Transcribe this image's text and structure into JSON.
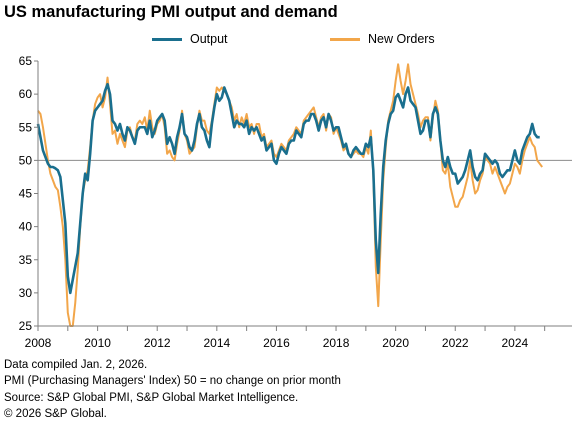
{
  "header": {
    "title": "US manufacturing PMI output and demand"
  },
  "colors": {
    "output": "#1a6f8e",
    "new_orders": "#f2a64a",
    "axis": "#7f7f7f",
    "reference_line": "#8c8c8c"
  },
  "footer": {
    "notes": [
      "Data compiled Jan. 2, 2026.",
      "PMI (Purchasing Managers' Index) 50 = no change on prior month",
      "Source: S&P Global PMI, S&P Global Market Intelligence.",
      "© 2026 S&P Global."
    ]
  },
  "chart_data": {
    "type": "line",
    "title": "US manufacturing PMI output and demand",
    "xlabel": "",
    "ylabel": "",
    "xlim": [
      2008,
      2025.917
    ],
    "ylim": [
      25,
      65
    ],
    "yticks": [
      25,
      30,
      35,
      40,
      45,
      50,
      55,
      60,
      65
    ],
    "xticks": [
      2008,
      2010,
      2012,
      2014,
      2016,
      2018,
      2020,
      2022,
      2024
    ],
    "reference_line": 50,
    "grid": false,
    "legend": "top-center",
    "x_start": 2008,
    "x_step_years": 0.0833333,
    "series": [
      {
        "name": "Output",
        "values": [
          55.5,
          53.5,
          51.5,
          50.5,
          49.5,
          49,
          49,
          48.8,
          48.5,
          47.5,
          44,
          40.5,
          32.5,
          30,
          32,
          34,
          36,
          40.5,
          45,
          48,
          47,
          51,
          56,
          57.5,
          58,
          58.5,
          59,
          60.5,
          61.5,
          60,
          56,
          55.5,
          54.5,
          55.5,
          54,
          53,
          55,
          54.5,
          53.5,
          52.5,
          54.5,
          55,
          55,
          55,
          54,
          56,
          53.5,
          54.5,
          56,
          56.5,
          57,
          56,
          52.5,
          53.5,
          52.5,
          51,
          53.5,
          55,
          57,
          54,
          53.5,
          52,
          51.5,
          53,
          55.5,
          57,
          55,
          54.5,
          53,
          52,
          55.5,
          58,
          60,
          59,
          59.5,
          61,
          60,
          59,
          57,
          55,
          56,
          55.5,
          55.5,
          55,
          56,
          54,
          55,
          54.5,
          55,
          54,
          53,
          53.5,
          51.5,
          52,
          52.5,
          50,
          49.5,
          51,
          52,
          51.5,
          51,
          52.5,
          53,
          53,
          54.5,
          54,
          53.5,
          55.5,
          56,
          56,
          57,
          57,
          56,
          54.5,
          56,
          56.5,
          55,
          57,
          56,
          54.5,
          55,
          55,
          53.5,
          52,
          52.5,
          51,
          50.5,
          51.5,
          52,
          51.5,
          51,
          51,
          52.5,
          52,
          53.5,
          48.5,
          38,
          33,
          42,
          49,
          53,
          55.5,
          57,
          57.5,
          59.5,
          60,
          59,
          58,
          60,
          61,
          59,
          58.5,
          58,
          56,
          54,
          54.5,
          56,
          56,
          53.5,
          57,
          58,
          57,
          53,
          50,
          49,
          50.5,
          49,
          48,
          48,
          46.5,
          47,
          47.5,
          48.5,
          50,
          51.5,
          49,
          47.5,
          47,
          48,
          48.5,
          51,
          50.5,
          50,
          49.5,
          50,
          49.5,
          48,
          47.5,
          48,
          48.5,
          48.5,
          50,
          51.5,
          50,
          49.5,
          51.5,
          52.5,
          53.5,
          54,
          55.5,
          54,
          53.5,
          53.5
        ]
      },
      {
        "name": "New Orders",
        "values": [
          57.5,
          57,
          55,
          52.5,
          50,
          48,
          47,
          46,
          45.5,
          43,
          40,
          35,
          27,
          25,
          25,
          28.5,
          33.5,
          40,
          45,
          47,
          48.5,
          52,
          56,
          58.5,
          59.5,
          60,
          58,
          59.5,
          62.5,
          58.5,
          54,
          54.5,
          52.5,
          54,
          53,
          52,
          54.5,
          55,
          53.5,
          53,
          55.5,
          56,
          55.5,
          56.5,
          54.5,
          57.5,
          55,
          54,
          55.5,
          56,
          57,
          55,
          51,
          51.5,
          50.5,
          50,
          52.5,
          54.5,
          57.5,
          54,
          53,
          51,
          51.5,
          52,
          55,
          57.5,
          56,
          56,
          54.5,
          54,
          56,
          58.5,
          61,
          60.5,
          61,
          60.5,
          60,
          59,
          58,
          56,
          57,
          55,
          56.5,
          55.5,
          57,
          55,
          55.5,
          54,
          55.5,
          55.5,
          53.5,
          54,
          52,
          52.5,
          53,
          51,
          50.5,
          51.5,
          52.5,
          52,
          51.5,
          53,
          53.5,
          54,
          55,
          54.5,
          54,
          56,
          56.5,
          57,
          57.5,
          58,
          56.5,
          55,
          56.5,
          57,
          54.5,
          57,
          56.5,
          54,
          55,
          54,
          53,
          51.5,
          52,
          51,
          50.5,
          51,
          51.5,
          51,
          51,
          50.5,
          52,
          51,
          54.5,
          48,
          34,
          28,
          38,
          47,
          52,
          56,
          57.5,
          59,
          62,
          64.5,
          62,
          60,
          62,
          64.5,
          61.5,
          60,
          58.5,
          57,
          55,
          56,
          56.5,
          56.5,
          53,
          56.5,
          59,
          57.5,
          53,
          48.5,
          48,
          49.5,
          46,
          44.5,
          43,
          43,
          44,
          44.5,
          46,
          47.5,
          50,
          47,
          45,
          45.5,
          47,
          48,
          50.5,
          50,
          49.5,
          48,
          49,
          48,
          47,
          46,
          45,
          46,
          46.5,
          48,
          49.5,
          49,
          48,
          50,
          51.5,
          52.5,
          53.5,
          52.5,
          52,
          50,
          49.5,
          49
        ]
      }
    ]
  }
}
